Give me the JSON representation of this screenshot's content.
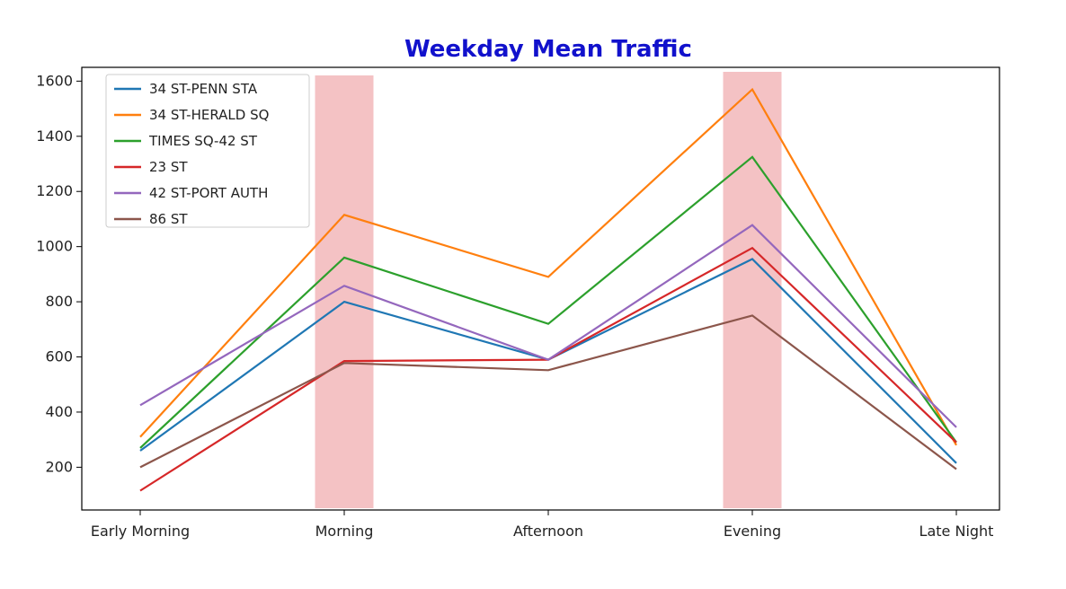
{
  "chart_data": {
    "type": "line",
    "title": "Weekday Mean Traffic",
    "xlabel": "",
    "ylabel": "",
    "categories": [
      "Early Morning",
      "Morning",
      "Afternoon",
      "Evening",
      "Late Night"
    ],
    "y_ticks": [
      200,
      400,
      600,
      800,
      1000,
      1200,
      1400,
      1600
    ],
    "ylim": [
      45,
      1650
    ],
    "grid": false,
    "legend_position": "top-left",
    "series": [
      {
        "name": "34 ST-PENN STA",
        "color": "#1f77b4",
        "values": [
          260,
          800,
          590,
          955,
          215
        ]
      },
      {
        "name": "34 ST-HERALD SQ",
        "color": "#ff7f0e",
        "values": [
          310,
          1115,
          890,
          1570,
          280
        ]
      },
      {
        "name": "TIMES SQ-42 ST",
        "color": "#2ca02c",
        "values": [
          270,
          960,
          720,
          1325,
          290
        ]
      },
      {
        "name": "23 ST",
        "color": "#d62728",
        "values": [
          115,
          585,
          590,
          995,
          290
        ]
      },
      {
        "name": "42 ST-PORT AUTH",
        "color": "#9467bd",
        "values": [
          425,
          858,
          590,
          1078,
          345
        ]
      },
      {
        "name": "86 ST",
        "color": "#8c564b",
        "values": [
          200,
          578,
          552,
          750,
          193
        ]
      }
    ],
    "highlights": [
      {
        "category": "Morning",
        "color": "#f4c2c4"
      },
      {
        "category": "Evening",
        "color": "#f4c2c4"
      }
    ]
  }
}
